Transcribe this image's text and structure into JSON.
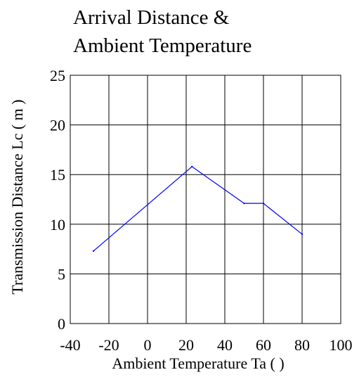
{
  "chart_data": {
    "type": "line",
    "title_lines": [
      "Arrival Distance &",
      "Ambient Temperature"
    ],
    "xlabel": "Ambient Temperature Ta (    )",
    "ylabel": "Transmission Distance Lc ( m )",
    "xlim": [
      -40,
      100
    ],
    "ylim": [
      0,
      25
    ],
    "xticks": [
      "-40",
      "-20",
      "0",
      "20",
      "40",
      "60",
      "80",
      "100"
    ],
    "yticks": [
      "0",
      "5",
      "10",
      "15",
      "20",
      "25"
    ],
    "grid": true,
    "series": [
      {
        "color": "#0000ff",
        "x": [
          -28,
          23,
          50,
          60,
          80
        ],
        "y": [
          7.3,
          15.8,
          12.1,
          12.1,
          9.0
        ]
      }
    ]
  }
}
